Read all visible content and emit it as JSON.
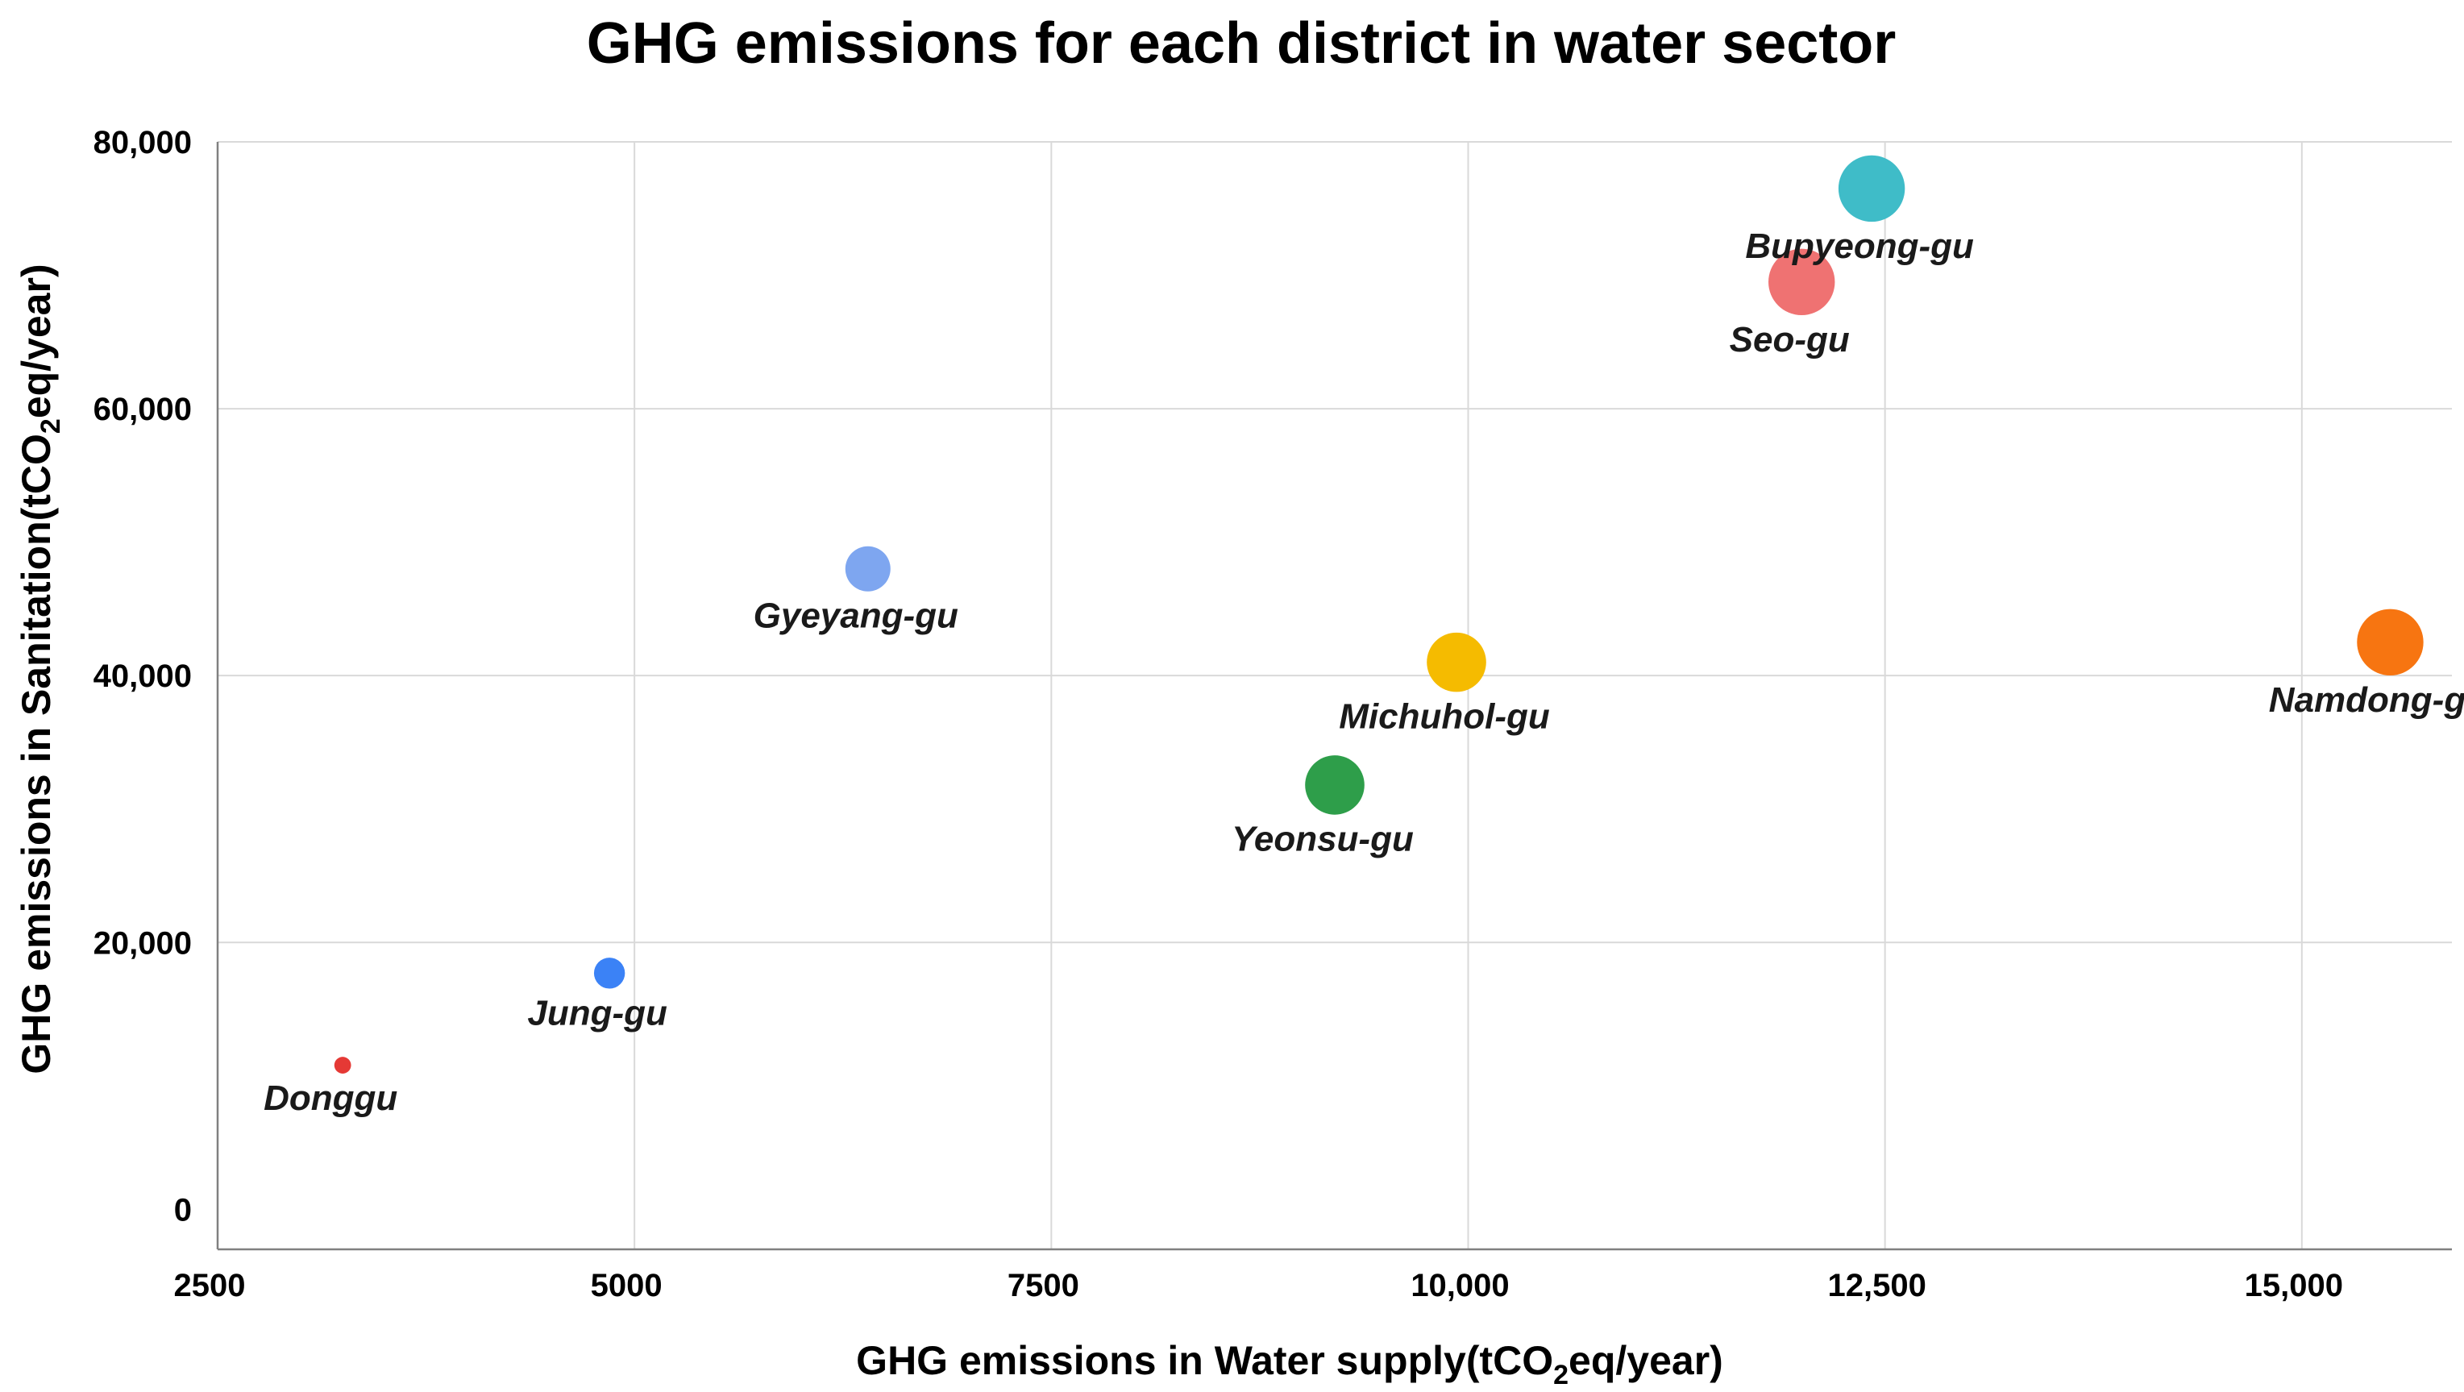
{
  "chart_data": {
    "type": "scatter",
    "title": "GHG emissions for each district in water sector",
    "xlabel": {
      "main": "GHG emissions in Water supply(tCO",
      "sub": "2",
      "tail": "eq/year)"
    },
    "ylabel": {
      "main": "GHG emissions in Sanitation(tCO",
      "sub": "2",
      "tail": "eq/year)"
    },
    "xlim": [
      2500,
      15900
    ],
    "ylim": [
      -3000,
      80000
    ],
    "x_ticks": [
      {
        "value": 2500,
        "label": "2500"
      },
      {
        "value": 5000,
        "label": "5000"
      },
      {
        "value": 7500,
        "label": "7500"
      },
      {
        "value": 10000,
        "label": "10,000"
      },
      {
        "value": 12500,
        "label": "12,500"
      },
      {
        "value": 15000,
        "label": "15,000"
      }
    ],
    "y_ticks": [
      {
        "value": 0,
        "label": "0"
      },
      {
        "value": 20000,
        "label": "20,000"
      },
      {
        "value": 40000,
        "label": "40,000"
      },
      {
        "value": 60000,
        "label": "60,000"
      },
      {
        "value": 80000,
        "label": "80,000"
      }
    ],
    "grid": true,
    "points": [
      {
        "name": "Donggu",
        "x": 3250,
        "y": 10800,
        "size": 1,
        "color": "#e53935"
      },
      {
        "name": "Jung-gu",
        "x": 4850,
        "y": 17700,
        "size": 3,
        "color": "#3b82f6"
      },
      {
        "name": "Gyeyang-gu",
        "x": 6400,
        "y": 48000,
        "size": 5,
        "color": "#7ea6f0"
      },
      {
        "name": "Yeonsu-gu",
        "x": 9200,
        "y": 31800,
        "size": 7,
        "color": "#2e9e4a"
      },
      {
        "name": "Michuhol-gu",
        "x": 9930,
        "y": 41000,
        "size": 7,
        "color": "#f5bb00"
      },
      {
        "name": "Seo-gu",
        "x": 12000,
        "y": 69500,
        "size": 8,
        "color": "#ef7272"
      },
      {
        "name": "Bupyeong-gu",
        "x": 12420,
        "y": 76500,
        "size": 8,
        "color": "#3fbcc8"
      },
      {
        "name": "Namdong-gu",
        "x": 15530,
        "y": 42500,
        "size": 8,
        "color": "#f77511"
      }
    ]
  }
}
